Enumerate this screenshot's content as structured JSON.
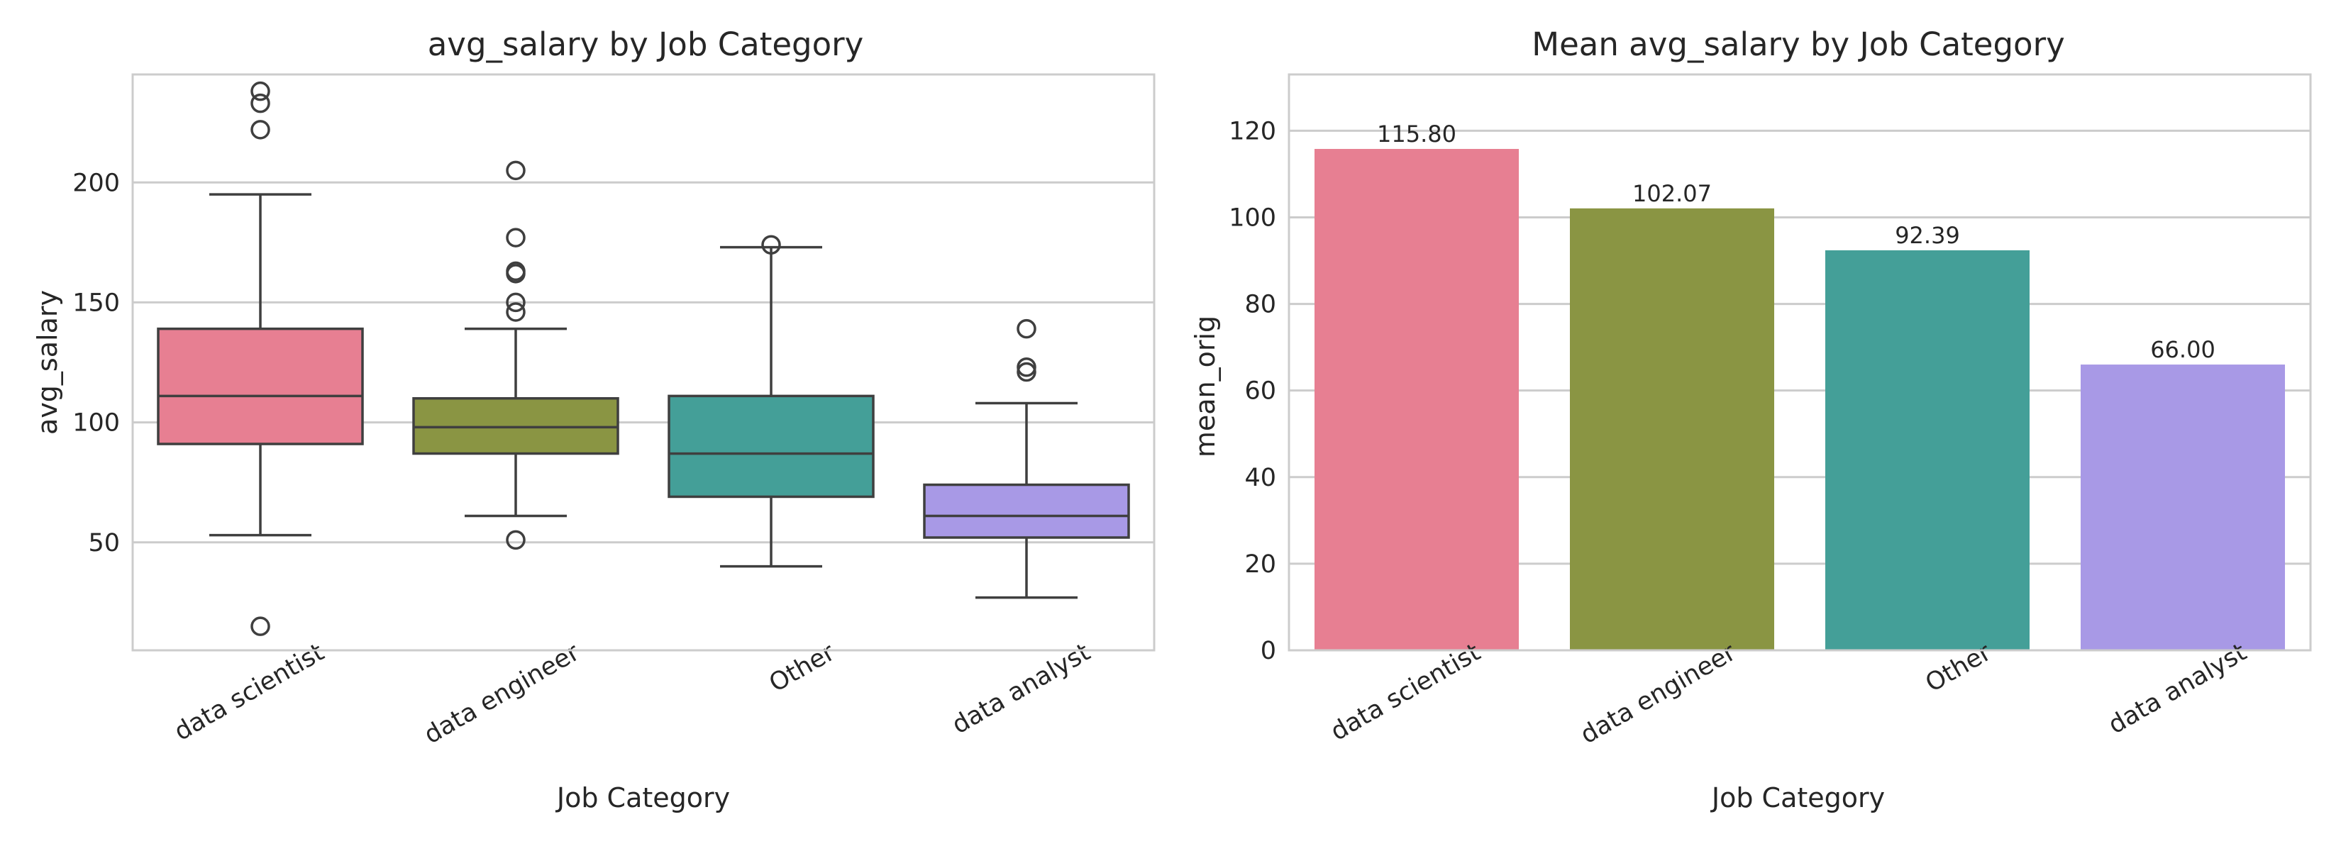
{
  "chart_data": [
    {
      "type": "box",
      "title": "avg_salary by Job Category",
      "xlabel": "Job Category",
      "ylabel": "avg_salary",
      "ylim": [
        5,
        245
      ],
      "yticks": [
        50,
        100,
        150,
        200
      ],
      "categories": [
        "data scientist",
        "data engineer",
        "Other",
        "data analyst"
      ],
      "colors": [
        "#e77f92",
        "#8a9543",
        "#449f98",
        "#a899e6"
      ],
      "boxes": [
        {
          "whisker_low": 53,
          "q1": 91,
          "median": 111,
          "q3": 139,
          "whisker_high": 195,
          "outliers": [
            15,
            222,
            233,
            238
          ]
        },
        {
          "whisker_low": 61,
          "q1": 87,
          "median": 98,
          "q3": 110,
          "whisker_high": 139,
          "outliers": [
            51,
            146,
            150,
            162,
            163,
            177,
            205
          ]
        },
        {
          "whisker_low": 40,
          "q1": 69,
          "median": 87,
          "q3": 111,
          "whisker_high": 173,
          "outliers": [
            174
          ]
        },
        {
          "whisker_low": 27,
          "q1": 52,
          "median": 61,
          "q3": 74,
          "whisker_high": 108,
          "outliers": [
            121,
            123,
            139
          ]
        }
      ]
    },
    {
      "type": "bar",
      "title": "Mean avg_salary by Job Category",
      "xlabel": "Job Category",
      "ylabel": "mean_orig",
      "ylim": [
        0,
        133
      ],
      "yticks": [
        0,
        20,
        40,
        60,
        80,
        100,
        120
      ],
      "categories": [
        "data scientist",
        "data engineer",
        "Other",
        "data analyst"
      ],
      "colors": [
        "#e77f92",
        "#8a9543",
        "#449f98",
        "#a899e6"
      ],
      "values": [
        115.8,
        102.07,
        92.39,
        66.0
      ],
      "value_labels": [
        "115.80",
        "102.07",
        "92.39",
        "66.00"
      ]
    }
  ]
}
